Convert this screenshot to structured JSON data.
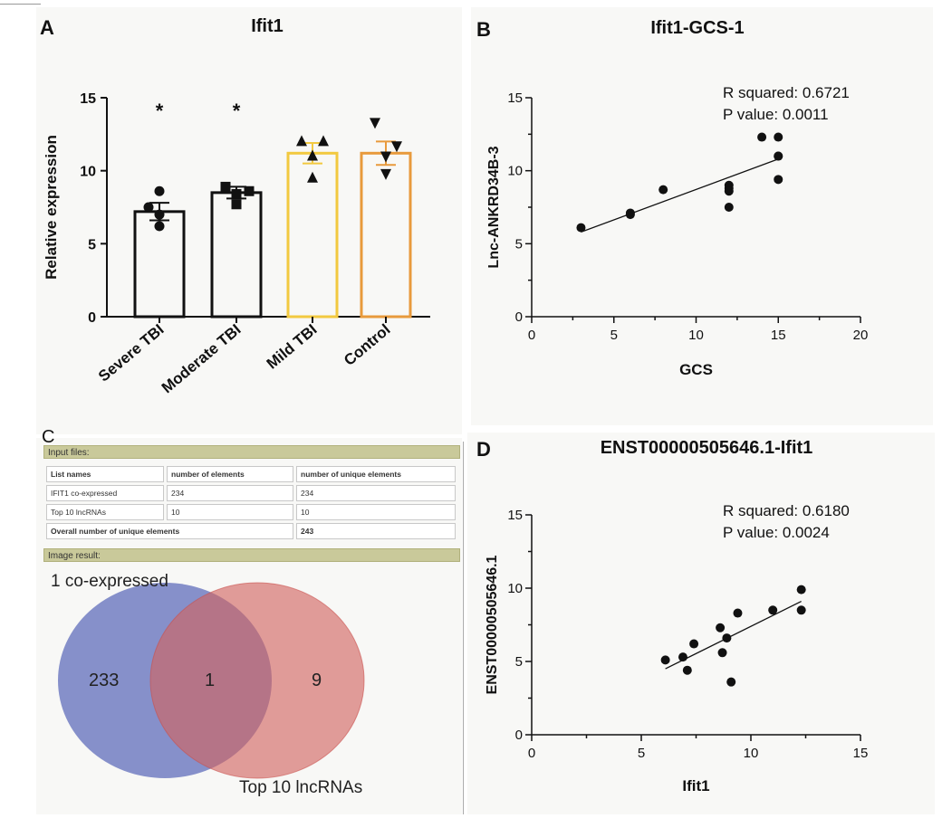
{
  "panel_labels": {
    "a": "A",
    "b": "B",
    "c": "C",
    "d": "D"
  },
  "chart_data": [
    {
      "type": "bar",
      "title": "Ifit1",
      "ylabel": "Relative  expression",
      "xlabel": "",
      "ylim": [
        0,
        15
      ],
      "yticks": [
        0,
        5,
        10,
        15
      ],
      "categories": [
        "Severe TBI",
        "Moderate TBI",
        "Mild TBI",
        "Control"
      ],
      "values": [
        7.2,
        8.5,
        11.2,
        11.2
      ],
      "sem": [
        0.6,
        0.4,
        0.7,
        0.8
      ],
      "bar_colors": [
        "#111111",
        "#111111",
        "#f2c940",
        "#e89a3c"
      ],
      "points": [
        [
          8.6,
          7.5,
          7.0,
          6.2
        ],
        [
          8.9,
          8.6,
          8.4,
          7.7
        ],
        [
          12.0,
          12.0,
          11.0,
          9.5
        ],
        [
          13.3,
          11.7,
          11.0,
          9.8
        ]
      ],
      "point_markers": [
        "circle",
        "square",
        "triangle-up",
        "triangle-down"
      ],
      "annotations": [
        "*",
        "*",
        "",
        ""
      ]
    },
    {
      "type": "scatter",
      "title": "Ifit1-GCS-1",
      "xlabel": "GCS",
      "ylabel": "Lnc-ANKRD34B-3",
      "xlim": [
        0,
        20
      ],
      "ylim": [
        0,
        15
      ],
      "xticks": [
        0,
        5,
        10,
        15,
        20
      ],
      "yticks": [
        0,
        5,
        10,
        15
      ],
      "x": [
        3,
        6,
        6,
        8,
        12,
        12,
        12,
        12,
        14,
        15,
        15,
        15,
        15
      ],
      "y": [
        6.1,
        7.0,
        7.1,
        8.7,
        9.0,
        8.8,
        8.6,
        7.5,
        12.3,
        12.3,
        11.0,
        11.0,
        9.4
      ],
      "fit_line": {
        "x": [
          3,
          15
        ],
        "y": [
          5.8,
          10.8
        ]
      },
      "stats": [
        "R squared: 0.6721",
        "P value: 0.0011"
      ]
    },
    {
      "type": "scatter",
      "title": "ENST00000505646.1-Ifit1",
      "xlabel": "Ifit1",
      "ylabel": "ENST00000505646.1",
      "xlim": [
        0,
        15
      ],
      "ylim": [
        0,
        15
      ],
      "xticks": [
        0,
        5,
        10,
        15
      ],
      "yticks": [
        0,
        5,
        10,
        15
      ],
      "x": [
        6.1,
        6.9,
        7.1,
        7.4,
        8.6,
        8.7,
        8.9,
        9.1,
        9.4,
        11.0,
        12.3,
        12.3
      ],
      "y": [
        5.1,
        5.3,
        4.4,
        6.2,
        7.3,
        5.6,
        6.6,
        3.6,
        8.3,
        8.5,
        9.9,
        8.5
      ],
      "fit_line": {
        "x": [
          6.1,
          12.3
        ],
        "y": [
          4.5,
          9.1
        ]
      },
      "stats": [
        "R squared: 0.6180",
        "P value: 0.0024"
      ]
    }
  ],
  "venn_tool": {
    "input_header": "Input files:",
    "table_headers": [
      "List names",
      "number of elements",
      "number of unique elements"
    ],
    "rows": [
      [
        "IFIT1 co-expressed",
        "234",
        "234"
      ],
      [
        "Top 10 lncRNAs",
        "10",
        "10"
      ]
    ],
    "overall": {
      "label": "Overall number of unique elements",
      "value": "243"
    },
    "image_header": "Image result:",
    "set_a_label": "1 co-expressed",
    "set_b_label": "Top 10 lncRNAs",
    "only_a": "233",
    "both": "1",
    "only_b": "9",
    "colors": {
      "set_a": "#5a68b8",
      "set_b": "#d2625e"
    }
  }
}
